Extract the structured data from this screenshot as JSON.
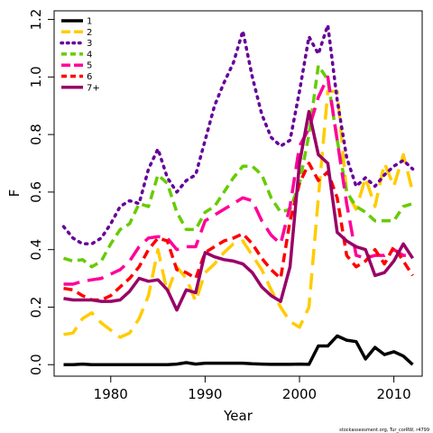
{
  "chart_data": {
    "type": "line",
    "title": "",
    "xlabel": "Year",
    "ylabel": "F",
    "xlim": [
      1974,
      2013
    ],
    "ylim": [
      -0.04,
      1.23
    ],
    "xticks": [
      1980,
      1990,
      2000,
      2010
    ],
    "yticks": [
      0.0,
      0.2,
      0.4,
      0.6,
      0.8,
      1.0,
      1.2
    ],
    "ytick_labels": [
      "0.0",
      "0.2",
      "0.4",
      "0.6",
      "0.8",
      "1.0",
      "1.2"
    ],
    "legend_position": "top-left",
    "grid": false,
    "years": [
      1975,
      1976,
      1977,
      1978,
      1979,
      1980,
      1981,
      1982,
      1983,
      1984,
      1985,
      1986,
      1987,
      1988,
      1989,
      1990,
      1991,
      1992,
      1993,
      1994,
      1995,
      1996,
      1997,
      1998,
      1999,
      2000,
      2001,
      2002,
      2003,
      2004,
      2005,
      2006,
      2007,
      2008,
      2009,
      2010,
      2011,
      2012
    ],
    "series": [
      {
        "name": "1",
        "color": "#000000",
        "dash": "solid",
        "width": 3.5,
        "values": [
          0.0,
          0.0,
          0.002,
          0.0,
          0.0,
          0.0,
          0.0,
          0.0,
          0.0,
          0.0,
          0.0,
          0.0,
          0.002,
          0.007,
          0.002,
          0.005,
          0.005,
          0.005,
          0.005,
          0.005,
          0.003,
          0.002,
          0.001,
          0.001,
          0.001,
          0.002,
          0.001,
          0.065,
          0.065,
          0.1,
          0.085,
          0.08,
          0.02,
          0.06,
          0.035,
          0.045,
          0.03,
          0.0
        ]
      },
      {
        "name": "2",
        "color": "#ffcc00",
        "dash": "long",
        "width": 3.5,
        "values": [
          0.105,
          0.11,
          0.16,
          0.18,
          0.145,
          0.12,
          0.095,
          0.11,
          0.16,
          0.24,
          0.4,
          0.25,
          0.34,
          0.3,
          0.22,
          0.32,
          0.35,
          0.39,
          0.42,
          0.43,
          0.38,
          0.33,
          0.26,
          0.2,
          0.15,
          0.13,
          0.2,
          0.58,
          0.95,
          0.95,
          0.6,
          0.54,
          0.65,
          0.55,
          0.7,
          0.62,
          0.73,
          0.6
        ]
      },
      {
        "name": "3",
        "color": "#660099",
        "dash": "dot",
        "width": 3.5,
        "values": [
          0.48,
          0.44,
          0.42,
          0.42,
          0.44,
          0.49,
          0.55,
          0.57,
          0.56,
          0.68,
          0.75,
          0.65,
          0.6,
          0.64,
          0.66,
          0.78,
          0.9,
          0.98,
          1.05,
          1.16,
          1.0,
          0.87,
          0.79,
          0.76,
          0.78,
          0.95,
          1.14,
          1.08,
          1.18,
          0.92,
          0.72,
          0.62,
          0.65,
          0.62,
          0.66,
          0.69,
          0.71,
          0.68
        ]
      },
      {
        "name": "4",
        "color": "#66cc00",
        "dash": "dash",
        "width": 3.5,
        "values": [
          0.37,
          0.36,
          0.365,
          0.34,
          0.36,
          0.42,
          0.47,
          0.49,
          0.56,
          0.55,
          0.66,
          0.63,
          0.53,
          0.47,
          0.47,
          0.53,
          0.55,
          0.6,
          0.65,
          0.69,
          0.69,
          0.66,
          0.58,
          0.53,
          0.54,
          0.63,
          0.8,
          1.04,
          0.99,
          0.78,
          0.6,
          0.55,
          0.53,
          0.5,
          0.5,
          0.5,
          0.55,
          0.56
        ]
      },
      {
        "name": "5",
        "color": "#ff0099",
        "dash": "long",
        "width": 3.5,
        "values": [
          0.28,
          0.28,
          0.29,
          0.295,
          0.3,
          0.315,
          0.33,
          0.36,
          0.41,
          0.44,
          0.445,
          0.44,
          0.4,
          0.41,
          0.41,
          0.5,
          0.52,
          0.54,
          0.56,
          0.58,
          0.57,
          0.5,
          0.45,
          0.42,
          0.55,
          0.76,
          0.82,
          0.93,
          1.0,
          0.78,
          0.56,
          0.38,
          0.37,
          0.38,
          0.38,
          0.4,
          0.38,
          0.38
        ]
      },
      {
        "name": "6",
        "color": "#ff0000",
        "dash": "dash",
        "width": 3.5,
        "values": [
          0.265,
          0.26,
          0.24,
          0.225,
          0.225,
          0.24,
          0.27,
          0.3,
          0.34,
          0.4,
          0.44,
          0.43,
          0.33,
          0.32,
          0.3,
          0.39,
          0.41,
          0.43,
          0.44,
          0.455,
          0.42,
          0.37,
          0.33,
          0.3,
          0.5,
          0.63,
          0.7,
          0.64,
          0.67,
          0.58,
          0.38,
          0.34,
          0.36,
          0.4,
          0.35,
          0.41,
          0.36,
          0.31
        ]
      },
      {
        "name": "7+",
        "color": "#990066",
        "dash": "solid",
        "width": 3.5,
        "values": [
          0.23,
          0.225,
          0.225,
          0.225,
          0.22,
          0.22,
          0.225,
          0.255,
          0.3,
          0.29,
          0.295,
          0.26,
          0.19,
          0.26,
          0.25,
          0.39,
          0.375,
          0.365,
          0.36,
          0.35,
          0.32,
          0.27,
          0.24,
          0.22,
          0.34,
          0.7,
          0.88,
          0.73,
          0.7,
          0.46,
          0.43,
          0.41,
          0.4,
          0.31,
          0.32,
          0.36,
          0.42,
          0.37
        ]
      }
    ],
    "footnote": "stockassessment.org, Tur_corRW, r4799"
  }
}
